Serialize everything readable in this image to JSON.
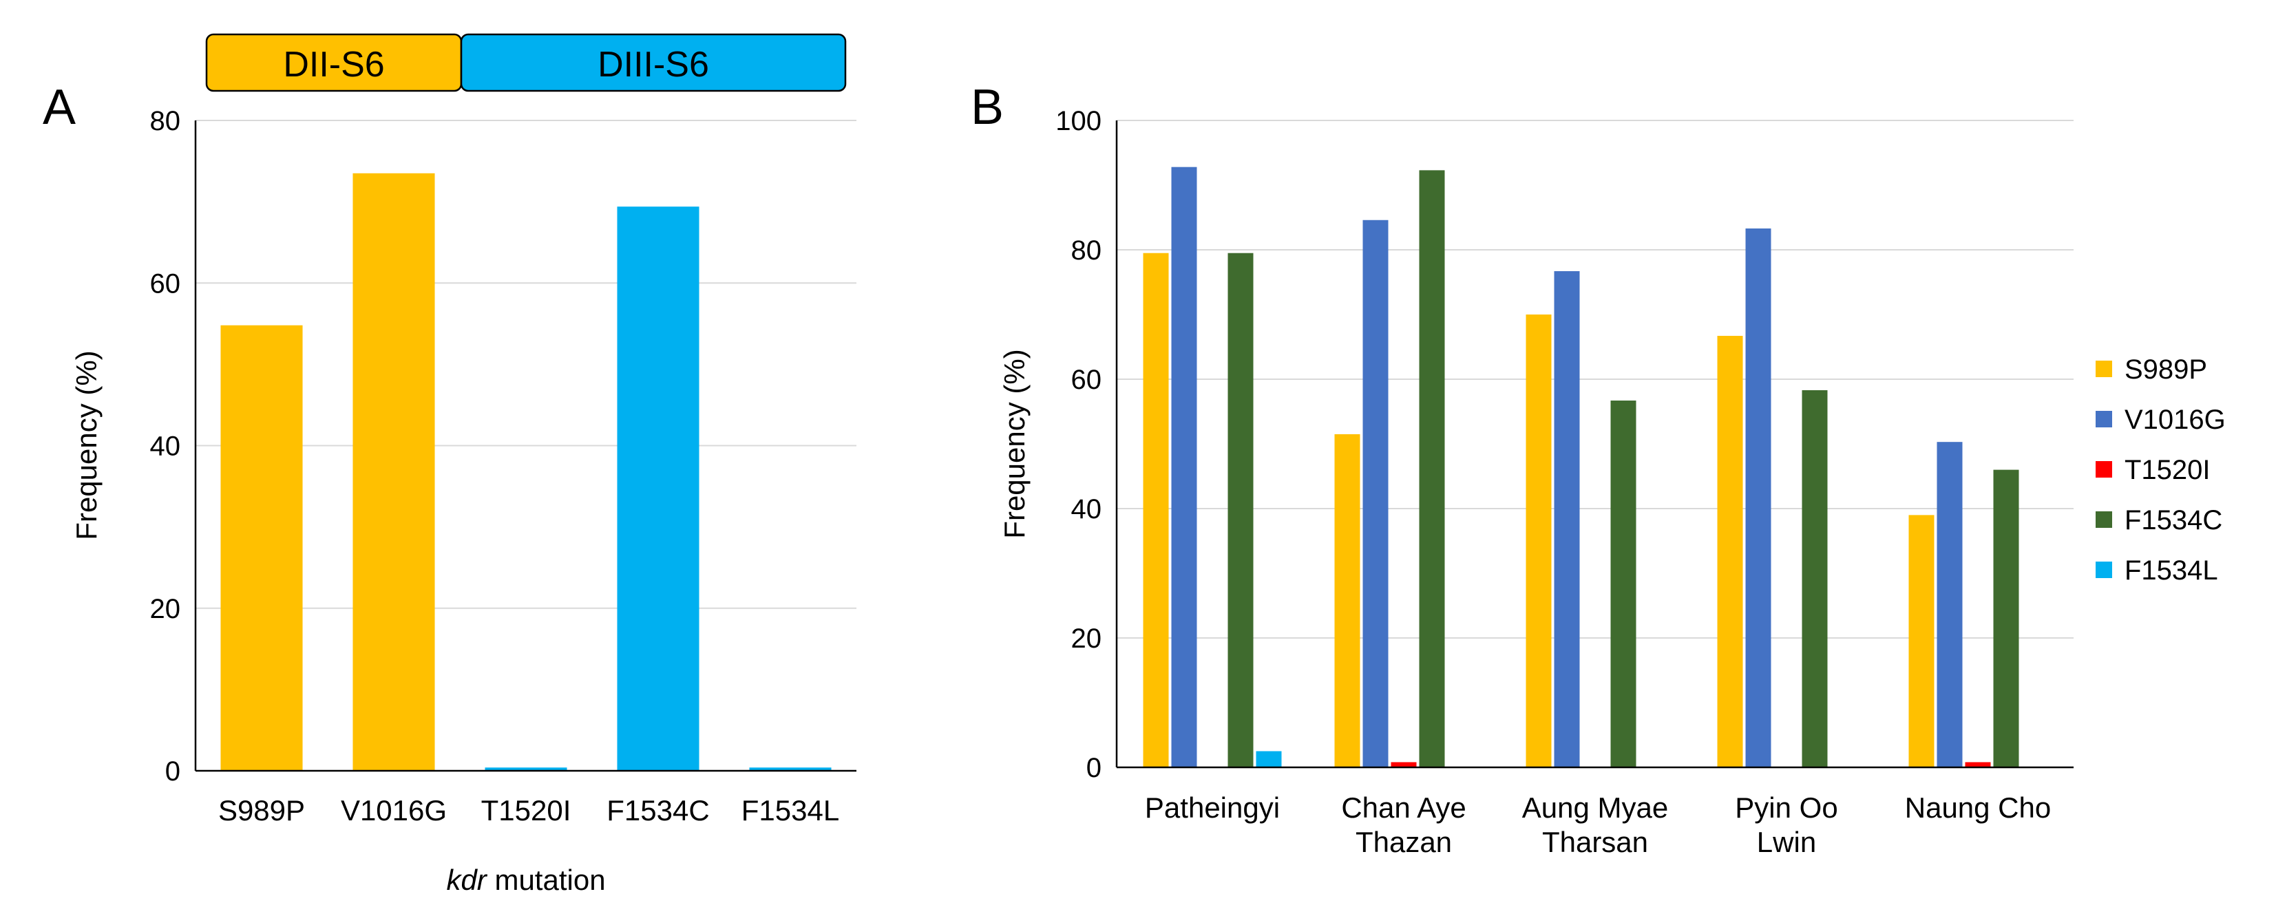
{
  "panel_a": {
    "letter": "A",
    "domains": [
      {
        "label": "DII-S6",
        "color": "#FFC000"
      },
      {
        "label": "DIII-S6",
        "color": "#00B0F0"
      }
    ]
  },
  "panel_b": {
    "letter": "B"
  },
  "chart_data": [
    {
      "type": "bar",
      "title": "",
      "categories": [
        "S989P",
        "V1016G",
        "T1520I",
        "F1534C",
        "F1534L"
      ],
      "values": [
        54.8,
        73.5,
        0.4,
        69.4,
        0.4
      ],
      "colors": [
        "#FFC000",
        "#FFC000",
        "#00B0F0",
        "#00B0F0",
        "#00B0F0"
      ],
      "xlabel_italic": "kdr",
      "xlabel_rest": " mutation",
      "ylabel": "Frequency (%)",
      "ylim": [
        0,
        80
      ],
      "yticks": [
        "0",
        "20",
        "40",
        "60",
        "80"
      ],
      "grid": true
    },
    {
      "type": "bar",
      "title": "",
      "categories": [
        [
          "Patheingyi"
        ],
        [
          "Chan Aye",
          "Thazan"
        ],
        [
          "Aung Myae",
          "Tharsan"
        ],
        [
          "Pyin Oo",
          "Lwin"
        ],
        [
          "Naung Cho"
        ]
      ],
      "series": [
        {
          "name": "S989P",
          "color": "#FFC000",
          "values": [
            79.5,
            51.5,
            70.0,
            66.7,
            39.0
          ]
        },
        {
          "name": "V1016G",
          "color": "#4472C4",
          "values": [
            92.8,
            84.6,
            76.7,
            83.3,
            50.3
          ]
        },
        {
          "name": "T1520I",
          "color": "#FF0000",
          "values": [
            0,
            0.8,
            0,
            0,
            0.8
          ]
        },
        {
          "name": "F1534C",
          "color": "#3F6B2E",
          "values": [
            79.5,
            92.3,
            56.7,
            58.3,
            46.0
          ]
        },
        {
          "name": "F1534L",
          "color": "#00B0F0",
          "values": [
            2.5,
            0,
            0,
            0,
            0
          ]
        }
      ],
      "xlabel": "",
      "ylabel": "Frequency (%)",
      "ylim": [
        0,
        100
      ],
      "yticks": [
        "0",
        "20",
        "40",
        "60",
        "80",
        "100"
      ],
      "grid": true,
      "legend": "right"
    }
  ]
}
